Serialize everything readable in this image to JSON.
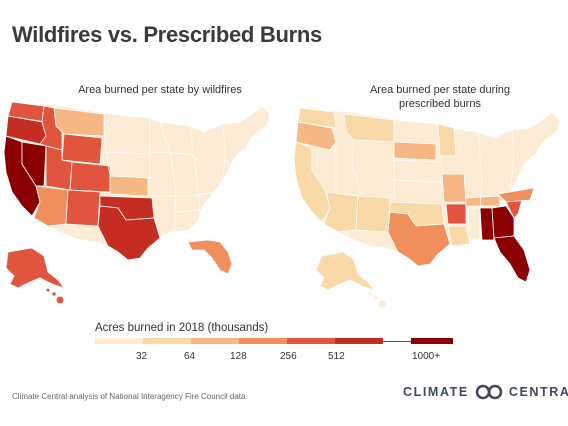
{
  "title": "Wildfires vs. Prescribed Burns",
  "maps": {
    "left": {
      "title": "Area burned per state by wildfires"
    },
    "right": {
      "title_line1": "Area burned per state during",
      "title_line2": "prescribed burns"
    }
  },
  "legend": {
    "title": "Acres burned in 2018 (thousands)",
    "labels": [
      "32",
      "64",
      "128",
      "256",
      "512",
      "1000+"
    ],
    "colors": [
      "#fcecd5",
      "#fad9a8",
      "#f6b784",
      "#f08e5c",
      "#e1553e",
      "#c62d22",
      "#8b0000"
    ]
  },
  "footer": {
    "source": "Climate Central analysis of National Interagency Fire Council data"
  },
  "brand": {
    "left": "CLIMATE",
    "right": "CENTRAL",
    "color": "#3e4a5a"
  }
}
